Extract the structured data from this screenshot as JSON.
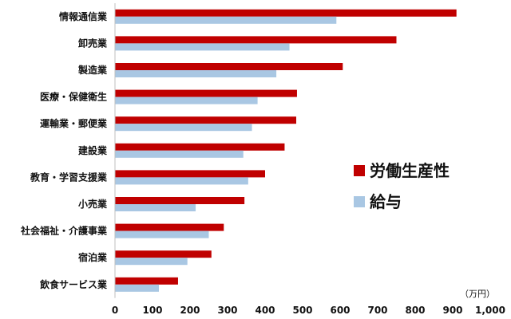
{
  "chart_data": {
    "type": "bar",
    "orientation": "horizontal",
    "categories": [
      "情報通信業",
      "卸売業",
      "製造業",
      "医療・保健衛生",
      "運輸業・郵便業",
      "建設業",
      "教育・学習支援業",
      "小売業",
      "社会福祉・介護事業",
      "宿泊業",
      "飲食サービス業"
    ],
    "series": [
      {
        "name": "労働生産性",
        "color": "#c00000",
        "values": [
          910,
          750,
          607,
          485,
          483,
          452,
          400,
          345,
          290,
          257,
          168
        ]
      },
      {
        "name": "給与",
        "color": "#a9c7e3",
        "values": [
          590,
          465,
          430,
          380,
          365,
          342,
          355,
          215,
          250,
          193,
          117
        ]
      }
    ],
    "xlim": [
      0,
      1000
    ],
    "xticks": [
      "0",
      "100",
      "200",
      "300",
      "400",
      "500",
      "600",
      "700",
      "800",
      "900",
      "1,000"
    ],
    "unit_label": "（万円）",
    "legend_position": "right",
    "grid": false
  }
}
